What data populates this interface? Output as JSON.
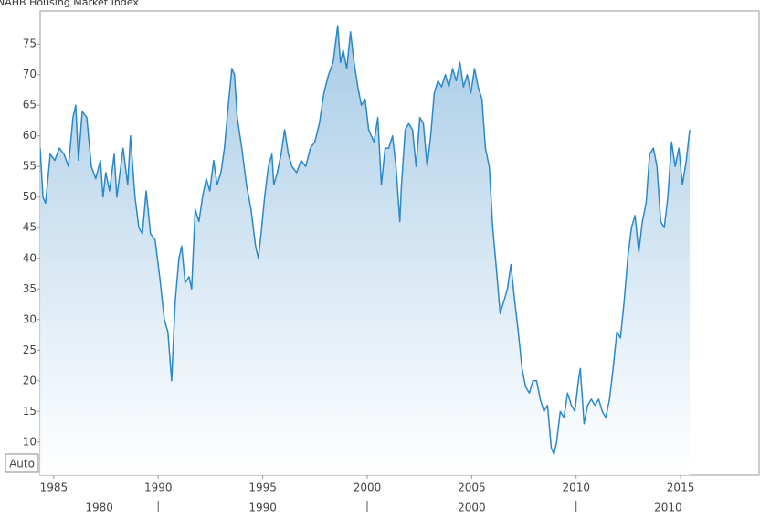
{
  "chart_data": {
    "type": "area-line",
    "title": "NAHB Housing Market Index",
    "auto_button": "Auto",
    "x": [
      1984.35,
      1984.48,
      1984.61,
      1984.83,
      1985.05,
      1985.27,
      1985.49,
      1985.7,
      1985.92,
      1986.05,
      1986.18,
      1986.36,
      1986.58,
      1986.8,
      1987.01,
      1987.23,
      1987.36,
      1987.49,
      1987.67,
      1987.89,
      1988.02,
      1988.32,
      1988.54,
      1988.67,
      1988.89,
      1989.07,
      1989.24,
      1989.42,
      1989.63,
      1989.85,
      1990.07,
      1990.29,
      1990.46,
      1990.64,
      1990.81,
      1990.99,
      1991.12,
      1991.29,
      1991.47,
      1991.6,
      1991.77,
      1991.95,
      1992.12,
      1992.3,
      1992.47,
      1992.65,
      1992.82,
      1993.0,
      1993.17,
      1993.35,
      1993.52,
      1993.65,
      1993.78,
      1994.0,
      1994.22,
      1994.44,
      1994.66,
      1994.79,
      1994.92,
      1995.09,
      1995.27,
      1995.44,
      1995.53,
      1995.7,
      1995.88,
      1996.05,
      1996.23,
      1996.4,
      1996.62,
      1996.84,
      1997.06,
      1997.28,
      1997.49,
      1997.71,
      1997.93,
      1998.15,
      1998.37,
      1998.59,
      1998.72,
      1998.85,
      1999.02,
      1999.2,
      1999.37,
      1999.55,
      1999.72,
      1999.9,
      2000.07,
      2000.33,
      2000.51,
      2000.68,
      2000.86,
      2001.03,
      2001.21,
      2001.38,
      2001.56,
      2001.64,
      2001.82,
      2001.99,
      2002.17,
      2002.34,
      2002.52,
      2002.69,
      2002.87,
      2003.04,
      2003.21,
      2003.39,
      2003.56,
      2003.74,
      2003.91,
      2004.09,
      2004.26,
      2004.44,
      2004.61,
      2004.79,
      2004.96,
      2005.14,
      2005.31,
      2005.49,
      2005.66,
      2005.84,
      2006.01,
      2006.19,
      2006.36,
      2006.54,
      2006.71,
      2006.88,
      2007.06,
      2007.23,
      2007.41,
      2007.58,
      2007.76,
      2007.93,
      2008.11,
      2008.28,
      2008.46,
      2008.63,
      2008.81,
      2008.94,
      2009.07,
      2009.24,
      2009.42,
      2009.59,
      2009.77,
      2009.94,
      2010.11,
      2010.2,
      2010.38,
      2010.55,
      2010.73,
      2010.9,
      2011.08,
      2011.25,
      2011.42,
      2011.6,
      2011.77,
      2011.95,
      2012.12,
      2012.3,
      2012.47,
      2012.65,
      2012.82,
      2013.0,
      2013.17,
      2013.35,
      2013.52,
      2013.7,
      2013.87,
      2014.05,
      2014.22,
      2014.39,
      2014.57,
      2014.74,
      2014.92,
      2015.09,
      2015.27,
      2015.44
    ],
    "series": [
      {
        "color": "#2b88c8",
        "values": [
          58,
          50,
          49,
          57,
          56,
          58,
          57,
          55,
          63,
          65,
          56,
          64,
          63,
          55,
          53,
          56,
          50,
          54,
          51,
          57,
          50,
          58,
          52,
          60,
          50,
          45,
          44,
          51,
          44,
          43,
          37,
          30,
          28,
          20,
          33,
          40,
          42,
          36,
          37,
          35,
          48,
          46,
          50,
          53,
          51,
          56,
          52,
          54,
          58,
          65,
          71,
          70,
          63,
          58,
          52,
          48,
          42,
          40,
          44,
          50,
          55,
          57,
          52,
          54,
          57,
          61,
          57,
          55,
          54,
          56,
          55,
          58,
          59,
          62,
          67,
          70,
          72,
          78,
          72,
          74,
          71,
          77,
          72,
          68,
          65,
          66,
          61,
          59,
          63,
          52,
          58,
          58,
          60,
          55,
          46,
          52,
          61,
          62,
          61,
          55,
          63,
          62,
          55,
          60,
          67,
          69,
          68,
          70,
          68,
          71,
          69,
          72,
          68,
          70,
          67,
          71,
          68,
          66,
          58,
          55,
          45,
          38,
          31,
          33,
          35,
          39,
          33,
          28,
          22,
          19,
          18,
          20,
          20,
          17,
          15,
          16,
          9,
          8,
          10,
          15,
          14,
          18,
          16,
          15,
          20,
          22,
          13,
          16,
          17,
          16,
          17,
          15,
          14,
          17,
          22,
          28,
          27,
          33,
          40,
          45,
          47,
          41,
          46,
          49,
          57,
          58,
          55,
          46,
          45,
          50,
          59,
          55,
          58,
          52,
          56,
          61
        ]
      }
    ],
    "xlim": [
      1984.35,
      2018.8
    ],
    "xticks": [
      1985,
      1990,
      1995,
      2000,
      2005,
      2010,
      2015
    ],
    "decade_ticks": [
      1980,
      1990,
      2000,
      2010
    ],
    "ylim": [
      4.6,
      80.4
    ],
    "yticks": [
      10,
      15,
      20,
      25,
      30,
      35,
      40,
      45,
      50,
      55,
      60,
      65,
      70,
      75
    ]
  }
}
